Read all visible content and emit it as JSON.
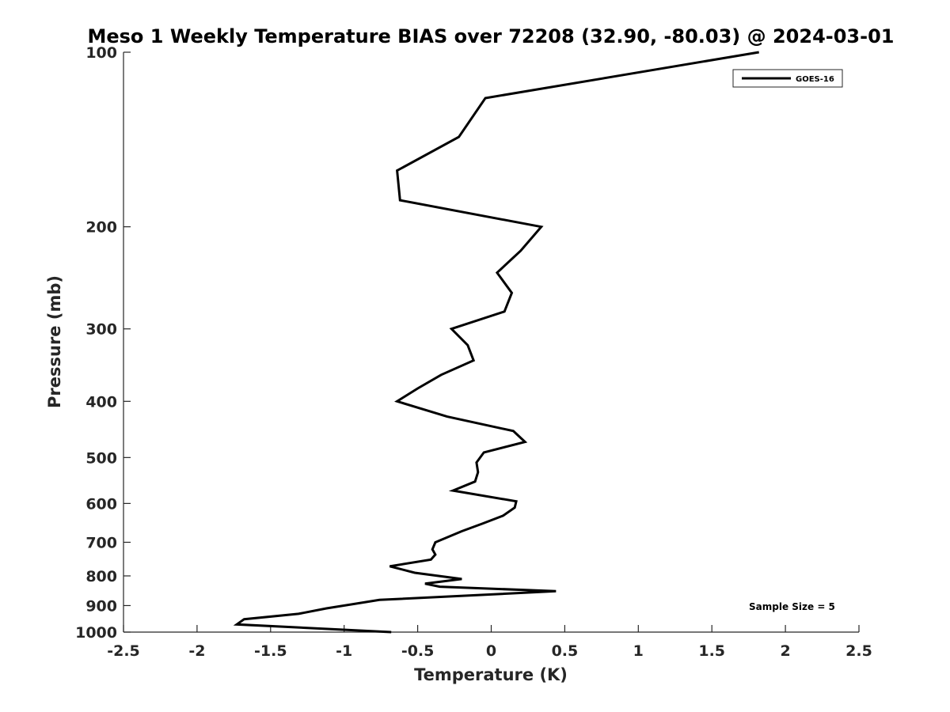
{
  "chart_data": {
    "type": "line",
    "title": "Meso 1 Weekly Temperature BIAS over 72208 (32.90, -80.03) @ 2024-03-01",
    "xlabel": "Temperature (K)",
    "ylabel": "Pressure (mb)",
    "xlim": [
      -2.5,
      2.5
    ],
    "ylim": [
      1000,
      100
    ],
    "y_scale": "log",
    "y_reversed": true,
    "x_ticks": [
      -2.5,
      -2,
      -1.5,
      -1,
      -0.5,
      0,
      0.5,
      1,
      1.5,
      2,
      2.5
    ],
    "x_tick_labels": [
      "-2.5",
      "-2",
      "-1.5",
      "-1",
      "-0.5",
      "0",
      "0.5",
      "1",
      "1.5",
      "2",
      "2.5"
    ],
    "y_ticks": [
      100,
      200,
      300,
      400,
      500,
      600,
      700,
      800,
      900,
      1000
    ],
    "y_tick_labels": [
      "100",
      "200",
      "300",
      "400",
      "500",
      "600",
      "700",
      "800",
      "900",
      "1000"
    ],
    "grid": false,
    "legend_position": "top-right",
    "series": [
      {
        "name": "GOES-16",
        "color": "#000000",
        "points": [
          [
            1.82,
            100
          ],
          [
            -0.04,
            120
          ],
          [
            -0.22,
            140
          ],
          [
            -0.64,
            160
          ],
          [
            -0.62,
            180
          ],
          [
            0.34,
            200
          ],
          [
            0.2,
            220
          ],
          [
            0.04,
            240
          ],
          [
            0.14,
            260
          ],
          [
            0.09,
            280
          ],
          [
            -0.27,
            300
          ],
          [
            -0.16,
            320
          ],
          [
            -0.12,
            340
          ],
          [
            -0.34,
            360
          ],
          [
            -0.5,
            380
          ],
          [
            -0.64,
            400
          ],
          [
            -0.3,
            425
          ],
          [
            0.15,
            450
          ],
          [
            0.23,
            470
          ],
          [
            -0.05,
            490
          ],
          [
            -0.1,
            510
          ],
          [
            -0.09,
            530
          ],
          [
            -0.11,
            550
          ],
          [
            -0.26,
            570
          ],
          [
            0.17,
            595
          ],
          [
            0.16,
            610
          ],
          [
            0.08,
            630
          ],
          [
            -0.06,
            650
          ],
          [
            -0.2,
            670
          ],
          [
            -0.38,
            700
          ],
          [
            -0.4,
            720
          ],
          [
            -0.38,
            735
          ],
          [
            -0.41,
            750
          ],
          [
            -0.69,
            770
          ],
          [
            -0.52,
            790
          ],
          [
            -0.2,
            810
          ],
          [
            -0.45,
            825
          ],
          [
            -0.35,
            835
          ],
          [
            0.44,
            850
          ],
          [
            -0.76,
            880
          ],
          [
            -1.12,
            910
          ],
          [
            -1.31,
            930
          ],
          [
            -1.68,
            950
          ],
          [
            -1.73,
            970
          ],
          [
            -0.68,
            1000
          ]
        ]
      }
    ],
    "annotations": [
      {
        "text": "Sample Size = 5"
      }
    ]
  }
}
